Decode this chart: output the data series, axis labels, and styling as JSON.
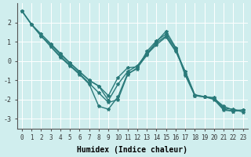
{
  "xlabel": "Humidex (Indice chaleur)",
  "ylabel": "",
  "bg_color": "#d0eeee",
  "line_color": "#2a7a7a",
  "xlim": [
    -0.5,
    23.5
  ],
  "ylim": [
    -3.5,
    3.0
  ],
  "yticks": [
    -3,
    -2,
    -1,
    0,
    1,
    2
  ],
  "xticks": [
    0,
    1,
    2,
    3,
    4,
    5,
    6,
    7,
    8,
    9,
    10,
    11,
    12,
    13,
    14,
    15,
    16,
    17,
    18,
    19,
    20,
    21,
    22,
    23
  ],
  "line1_x": [
    0,
    1,
    2,
    3,
    4,
    5,
    6,
    7,
    8,
    9,
    10,
    11,
    12,
    13,
    14,
    15,
    16,
    17,
    18,
    19,
    20,
    21,
    22,
    23
  ],
  "line1_y": [
    2.6,
    1.9,
    1.3,
    0.75,
    0.2,
    -0.25,
    -0.7,
    -1.2,
    -2.35,
    -2.5,
    -1.85,
    -0.65,
    -0.4,
    0.5,
    1.05,
    1.4,
    0.65,
    -0.75,
    -1.8,
    -1.85,
    -2.0,
    -2.55,
    -2.6,
    -2.55
  ],
  "line2_x": [
    0,
    1,
    2,
    3,
    4,
    5,
    6,
    7,
    8,
    9,
    10,
    11,
    12,
    13,
    14,
    15,
    16,
    17,
    18,
    19,
    20,
    21,
    22,
    23
  ],
  "line2_y": [
    2.6,
    1.9,
    1.3,
    0.85,
    0.35,
    -0.1,
    -0.55,
    -1.0,
    -1.3,
    -1.8,
    -0.85,
    -0.35,
    -0.3,
    0.35,
    0.85,
    1.25,
    0.5,
    -0.55,
    -1.8,
    -1.85,
    -1.9,
    -2.45,
    -2.5,
    -2.65
  ],
  "line3_x": [
    0,
    1,
    2,
    3,
    4,
    5,
    6,
    7,
    8,
    9,
    10,
    11,
    12,
    13,
    14,
    15,
    16,
    17,
    18,
    19,
    20,
    21,
    22,
    23
  ],
  "line3_y": [
    2.6,
    1.9,
    1.4,
    0.9,
    0.4,
    -0.1,
    -0.55,
    -1.0,
    -1.3,
    -2.05,
    -1.2,
    -0.55,
    -0.25,
    0.4,
    0.95,
    1.3,
    0.55,
    -0.55,
    -1.75,
    -1.85,
    -1.95,
    -2.35,
    -2.55,
    -2.55
  ],
  "line4_x": [
    3,
    4,
    5,
    6,
    7,
    8,
    9,
    10,
    11,
    12,
    13,
    14,
    15,
    16,
    17,
    18,
    19,
    20,
    21,
    22,
    23
  ],
  "line4_y": [
    0.75,
    0.25,
    -0.2,
    -0.65,
    -1.15,
    -1.65,
    -2.15,
    -2.0,
    -0.7,
    -0.35,
    0.3,
    1.0,
    1.55,
    0.7,
    -0.65,
    -1.8,
    -1.85,
    -1.95,
    -2.5,
    -2.6,
    -2.55
  ]
}
